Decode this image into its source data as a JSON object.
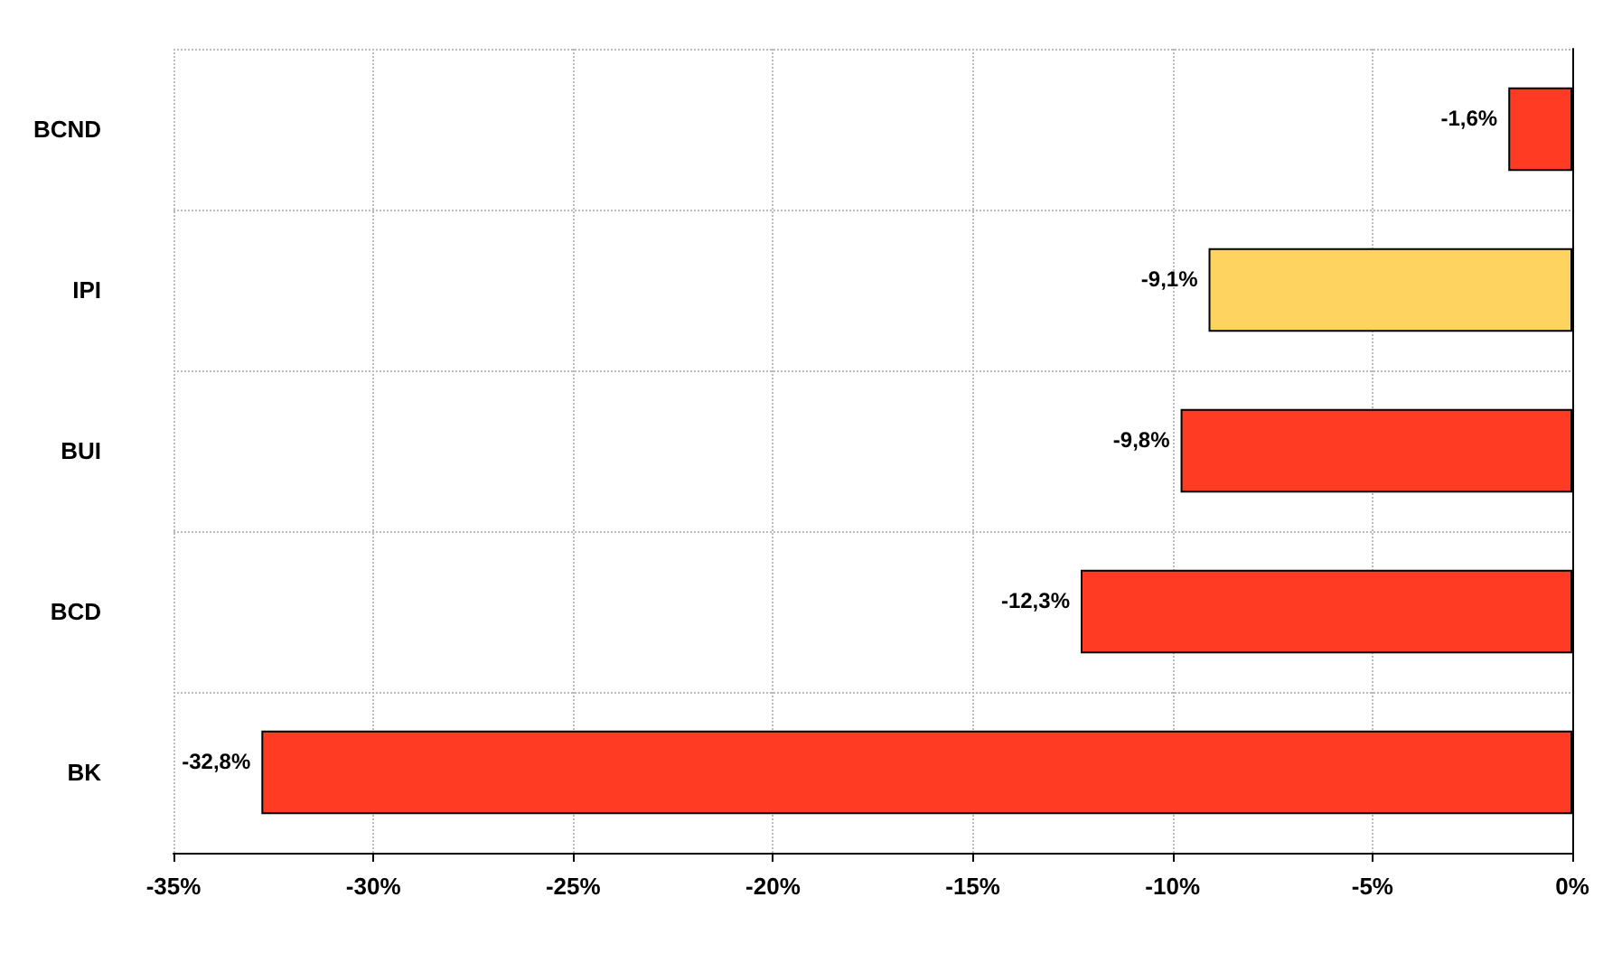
{
  "chart_data": {
    "type": "bar",
    "orientation": "horizontal",
    "categories": [
      "BCND",
      "IPI",
      "BUI",
      "BCD",
      "BK"
    ],
    "values": [
      -1.6,
      -9.1,
      -9.8,
      -12.3,
      -32.8
    ],
    "colors": [
      "#ff3b24",
      "#ffd35f",
      "#ff3b24",
      "#ff3b24",
      "#ff3b24"
    ],
    "value_labels": [
      "-1,6%",
      "-9,1%",
      "-9,8%",
      "-12,3%",
      "-32,8%"
    ],
    "xlim": [
      -35,
      0
    ],
    "xticks": [
      {
        "value": -35,
        "label": "-35%"
      },
      {
        "value": -30,
        "label": "-30%"
      },
      {
        "value": -25,
        "label": "-25%"
      },
      {
        "value": -20,
        "label": "-20%"
      },
      {
        "value": -15,
        "label": "-15%"
      },
      {
        "value": -10,
        "label": "-10%"
      },
      {
        "value": -5,
        "label": "-5%"
      },
      {
        "value": 0,
        "label": "0%"
      }
    ],
    "grid": true
  }
}
